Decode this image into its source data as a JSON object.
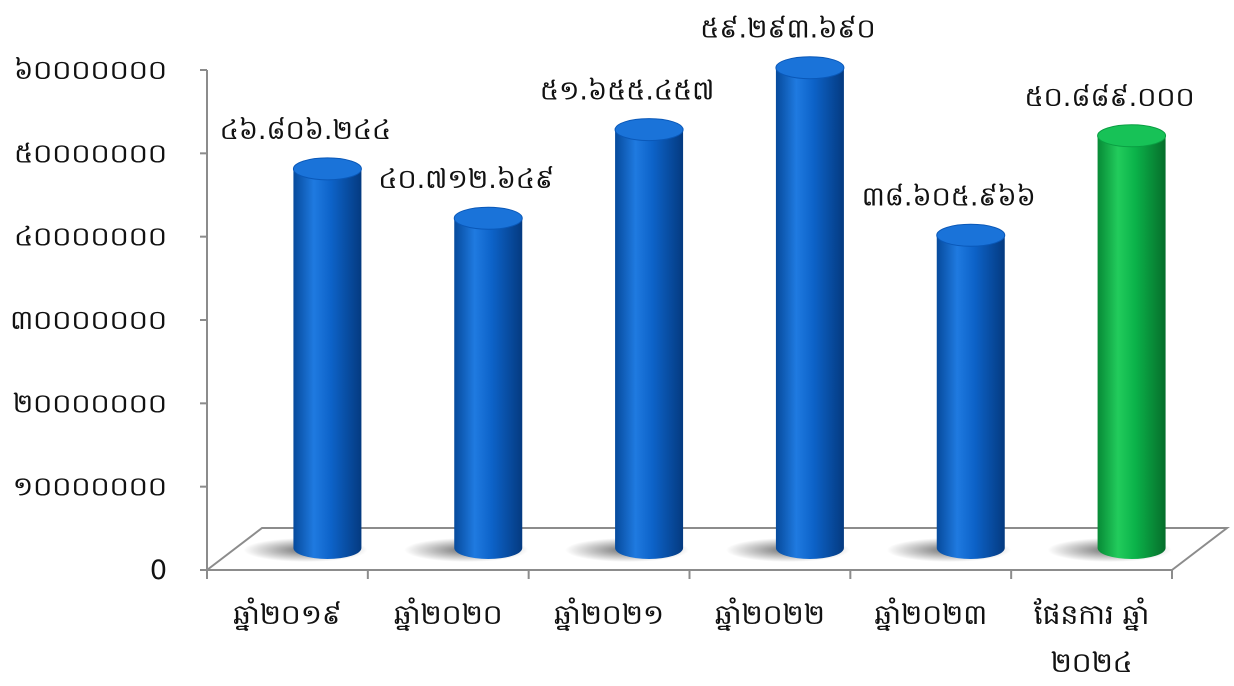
{
  "chart_data": {
    "type": "bar",
    "categories": [
      "ឆ្នាំ២០១៩",
      "ឆ្នាំ២០២០",
      "ឆ្នាំ២០២១",
      "ឆ្នាំ២០២២",
      "ឆ្នាំ២០២៣",
      "ផែនការ ឆ្នាំ ២០២៤"
    ],
    "category_lines": [
      [
        "ឆ្នាំ២០១៩"
      ],
      [
        "ឆ្នាំ២០២០"
      ],
      [
        "ឆ្នាំ២០២១"
      ],
      [
        "ឆ្នាំ២០២២"
      ],
      [
        "ឆ្នាំ២០២៣"
      ],
      [
        "ផែនការ ឆ្នាំ",
        "២០២៤"
      ]
    ],
    "values": [
      46806244,
      40712649,
      51655457,
      59293690,
      38605966,
      50889000
    ],
    "data_labels": [
      "៤៦.៨០៦.២៤៤",
      "៤០.៧១២.៦៤៩",
      "៥១.៦៥៥.៤៥៧",
      "៥៩.២៩៣.៦៩០",
      "៣៨.៦០៥.៩៦៦",
      "៥០.៨៨៩.០០០"
    ],
    "bar_colors": [
      "#0a5fc4",
      "#0a5fc4",
      "#0a5fc4",
      "#0a5fc4",
      "#0a5fc4",
      "#0bb34a"
    ],
    "y_ticks": [
      0,
      10000000,
      20000000,
      30000000,
      40000000,
      50000000,
      60000000
    ],
    "y_tick_labels": [
      "0",
      "១០០០០០០០",
      "២០០០០០០០",
      "៣០០០០០០០",
      "៤០០០០០០០",
      "៥០០០០០០០",
      "៦០០០០០០០"
    ],
    "ylim": [
      0,
      60000000
    ],
    "grid": false,
    "legend": "none",
    "style": "3d-cylinder"
  }
}
